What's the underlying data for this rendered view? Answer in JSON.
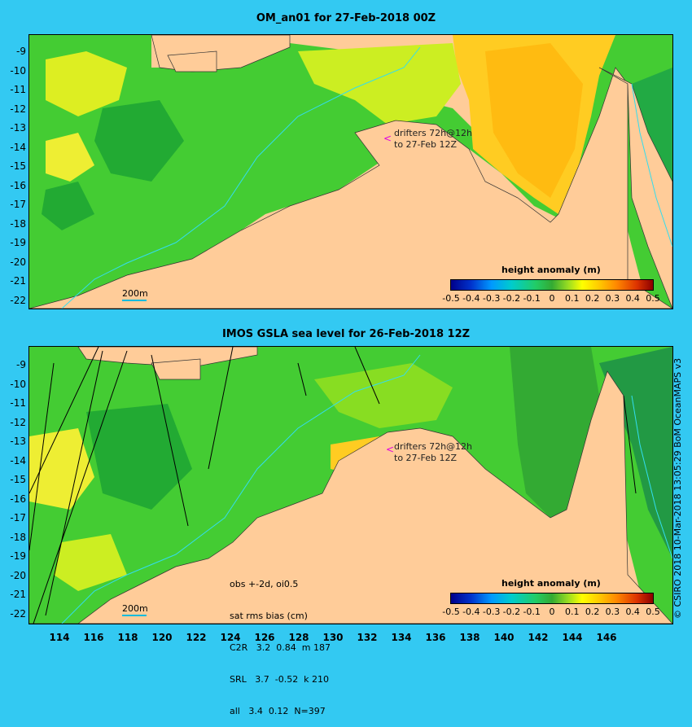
{
  "top": {
    "title": "OM_an01 for 27-Feb-2018 00Z",
    "annotation_line1": "drifters 72h@12h",
    "annotation_line2": "to 27-Feb 12Z",
    "legend_title": "height anomaly (m)",
    "scale_label": "200m"
  },
  "bottom": {
    "title": "IMOS GSLA sea level  for 26-Feb-2018 12Z",
    "annotation_line1": "drifters 72h@12h",
    "annotation_line2": "to 27-Feb 12Z",
    "legend_title": "height anomaly (m)",
    "scale_label": "200m",
    "stats": {
      "line1": "obs +-2d, oi0.5",
      "line2": "sat rms bias (cm)",
      "line3": "C2R   3.2  0.84  m 187",
      "line4": "SRL   3.7  -0.52  k 210",
      "line5": "all   3.4  0.12  N=397"
    }
  },
  "y_labels": [
    "-9",
    "-10",
    "-11",
    "-12",
    "-13",
    "-14",
    "-15",
    "-16",
    "-17",
    "-18",
    "-19",
    "-20",
    "-21",
    "-22"
  ],
  "x_labels": [
    "114",
    "116",
    "118",
    "120",
    "122",
    "124",
    "126",
    "128",
    "130",
    "132",
    "134",
    "136",
    "138",
    "140",
    "142",
    "144",
    "146"
  ],
  "colorbar_ticks": [
    "-0.5",
    "-0.4",
    "-0.3",
    "-0.2",
    "-0.1",
    "0",
    "0.1",
    "0.2",
    "0.3",
    "0.4",
    "0.5"
  ],
  "credit": "© CSIRO 2018  10-Mar-2018 13:05:29 BoM OceanMAPS v3",
  "colors": {
    "background": "#33c9f2",
    "land": "#ffcc99",
    "ocean_green": "#33cc33",
    "ocean_yellow": "#ddee22",
    "ocean_orange": "#ffbb22"
  }
}
